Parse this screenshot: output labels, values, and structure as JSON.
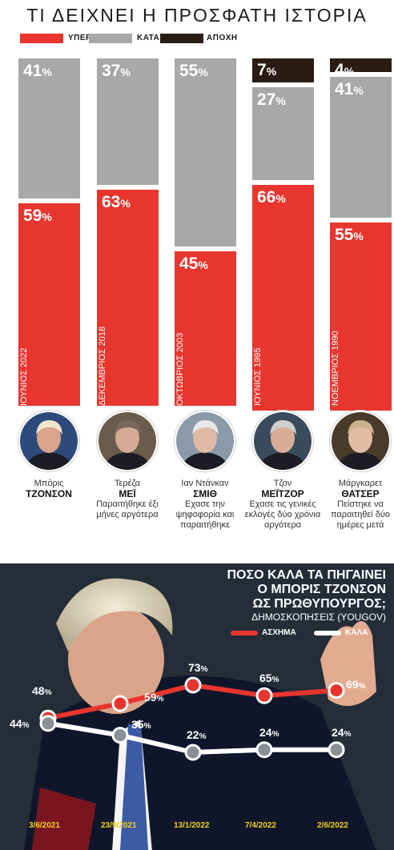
{
  "top": {
    "title": "ΤΙ ΔΕΙΧΝΕΙ Η ΠΡΟΣΦΑΤΗ ΙΣΤΟΡΙΑ",
    "legend": [
      {
        "label": "ΥΠΕΡ",
        "color": "#e8352e"
      },
      {
        "label": "ΚΑΤΑ",
        "color": "#a8a8a8"
      },
      {
        "label": "ΑΠΟΧΗ",
        "color": "#2a1c12"
      }
    ],
    "people": [
      {
        "date": "ΙΟΥΝΙΟΣ 2022",
        "first": "Μπόρις",
        "last": "ΤΖΟΝΣΟΝ",
        "note": ""
      },
      {
        "date": "ΔΕΚΕΜΒΡΙΟΣ 2018",
        "first": "Τερέζα",
        "last": "ΜΕΪ",
        "note": "Παραιτήθηκε έξι μήνες αργότερα"
      },
      {
        "date": "ΟΚΤΩΒΡΙΟΣ 2003",
        "first": "Ιαν Ντάνκαν",
        "last": "ΣΜΙΘ",
        "note": "Εχασε την ψηφοφορία και παραιτήθηκε"
      },
      {
        "date": "ΙΟΥΝΙΟΣ 1995",
        "first": "Τζον",
        "last": "ΜΕΪΤΖΟΡ",
        "note": "Εχασε τις γενικές εκλογές δύο χρόνια αργότερα"
      },
      {
        "date": "ΝΟΕΜΒΡΙΟΣ 1990",
        "first": "Μάργκαρετ",
        "last": "ΘΑΤΣΕΡ",
        "note": "Πείστηκε να παραιτηθεί δύο ημέρες μετά"
      }
    ]
  },
  "bottom": {
    "title_lines": [
      "ΠΟΣΟ ΚΑΛΑ ΤΑ ΠΗΓΑΙΝΕΙ",
      "Ο ΜΠΟΡΙΣ ΤΖΟΝΣΟΝ",
      "ΩΣ ΠΡΩΘΥΠΟΥΡΓΟΣ;"
    ],
    "subtitle": "ΔΗΜΟΣΚΟΠΗΣΕΙΣ (YOUGOV)",
    "legend": [
      {
        "label": "ΑΣΧΗΜΑ",
        "color": "#e8352e"
      },
      {
        "label": "ΚΑΛΑ",
        "color": "#ffffff"
      }
    ]
  },
  "chart_data": [
    {
      "type": "bar",
      "stacked": true,
      "percent_suffix": "%",
      "categories": [
        "ΙΟΥΝΙΟΣ 2022",
        "ΔΕΚΕΜΒΡΙΟΣ 2018",
        "ΟΚΤΩΒΡΙΟΣ 2003",
        "ΙΟΥΝΙΟΣ 1995",
        "ΝΟΕΜΒΡΙΟΣ 1990"
      ],
      "series": [
        {
          "name": "ΥΠΕΡ",
          "values": [
            59,
            63,
            45,
            66,
            55
          ]
        },
        {
          "name": "ΚΑΤΑ",
          "values": [
            41,
            37,
            55,
            27,
            41
          ]
        },
        {
          "name": "ΑΠΟΧΗ",
          "values": [
            0,
            0,
            0,
            7,
            4
          ]
        }
      ],
      "ylim": [
        0,
        100
      ]
    },
    {
      "type": "line",
      "percent_suffix": "%",
      "x": [
        "3/6/2021",
        "23/9/2021",
        "13/1/2022",
        "7/4/2022",
        "2/6/2022"
      ],
      "series": [
        {
          "name": "ΑΣΧΗΜΑ",
          "values": [
            48,
            59,
            73,
            65,
            69
          ]
        },
        {
          "name": "ΚΑΛΑ",
          "values": [
            44,
            35,
            22,
            24,
            24
          ]
        }
      ]
    }
  ]
}
